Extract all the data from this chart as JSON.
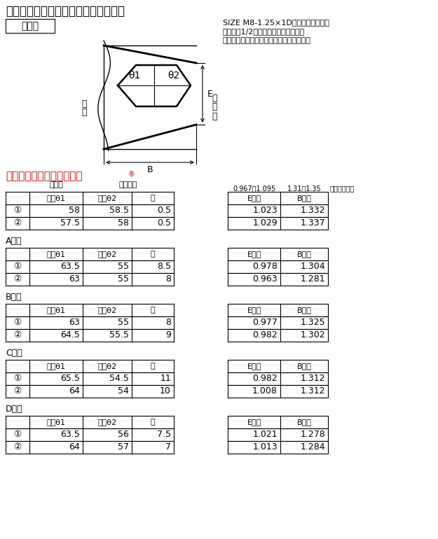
{
  "title": "【他社製品との材料角度測定比較表】",
  "shape_label": "形状図",
  "note_lines": [
    "SIZE M8-1.25×1Dのフリー外径状の",
    "端末から1/2巻のところを同一条件で",
    "測定したものので、あくまで参考値です。"
  ],
  "our_product_label": "当社製スーパースプリュー",
  "our_product_reg": "®",
  "label_bokezai": "母\n材",
  "label_bolt": "ボ\nル\nト",
  "label_theta1": "θ1",
  "label_theta2": "θ2",
  "label_E": "E",
  "label_B": "B",
  "left_col_header": [
    "角度θ1",
    "角度θ2",
    "差"
  ],
  "right_col_header": [
    "E寸法",
    "B寸法"
  ],
  "subheader_E": "0.967～1.095",
  "subheader_B": "1.31～1.35",
  "our_note": "（当社規格）",
  "hdr_row1_left": "母材側",
  "hdr_row1_right": "ボルト側",
  "data": {
    "当社製": {
      "rows": [
        {
          "no": "①",
          "theta1": "58",
          "theta2": "58.5",
          "diff": "0.5",
          "E": "1.023",
          "B": "1.332"
        },
        {
          "no": "②",
          "theta1": "57.5",
          "theta2": "58",
          "diff": "0.5",
          "E": "1.029",
          "B": "1.337"
        }
      ]
    },
    "A社製": {
      "rows": [
        {
          "no": "①",
          "theta1": "63.5",
          "theta2": "55",
          "diff": "8.5",
          "E": "0.978",
          "B": "1.304"
        },
        {
          "no": "②",
          "theta1": "63",
          "theta2": "55",
          "diff": "8",
          "E": "0.963",
          "B": "1.281"
        }
      ]
    },
    "B社製": {
      "rows": [
        {
          "no": "①",
          "theta1": "63",
          "theta2": "55",
          "diff": "8",
          "E": "0.977",
          "B": "1.325"
        },
        {
          "no": "②",
          "theta1": "64.5",
          "theta2": "55.5",
          "diff": "9",
          "E": "0.982",
          "B": "1.302"
        }
      ]
    },
    "C社製": {
      "rows": [
        {
          "no": "①",
          "theta1": "65.5",
          "theta2": "54.5",
          "diff": "11",
          "E": "0.982",
          "B": "1.312"
        },
        {
          "no": "②",
          "theta1": "64",
          "theta2": "54",
          "diff": "10",
          "E": "1.008",
          "B": "1.312"
        }
      ]
    },
    "D社製": {
      "rows": [
        {
          "no": "①",
          "theta1": "63.5",
          "theta2": "56",
          "diff": "7.5",
          "E": "1.021",
          "B": "1.278"
        },
        {
          "no": "②",
          "theta1": "64",
          "theta2": "57",
          "diff": "7",
          "E": "1.013",
          "B": "1.284"
        }
      ]
    }
  },
  "section_order": [
    "当社製",
    "A社製",
    "B社製",
    "C社製",
    "D社製"
  ],
  "bg_color": "#ffffff",
  "red_color": "#cc0000",
  "black": "#000000"
}
